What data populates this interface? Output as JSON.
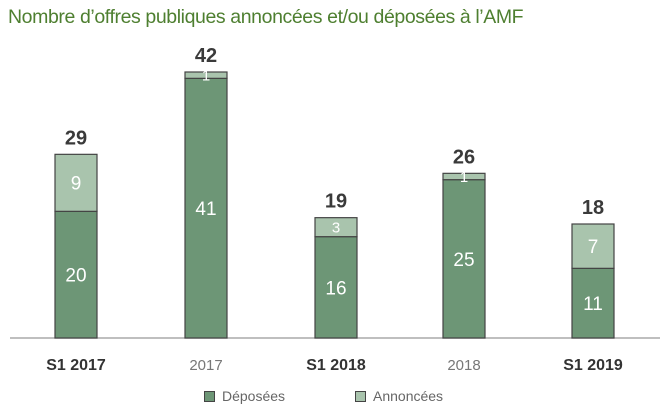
{
  "colors": {
    "title": "#4e7f30",
    "deposees": "#6d9676",
    "annoncees": "#a9c4ad",
    "bar_border": "#444444",
    "baseline": "#aaaaaa",
    "total_text": "#3a3a3a",
    "segment_text": "#ffffff",
    "bold_label": "#333333",
    "light_label": "#777777"
  },
  "chart_data": {
    "type": "bar",
    "stacked": true,
    "title": "Nombre d’offres publiques annoncées et/ou déposées à l’AMF",
    "categories": [
      "S1 2017",
      "2017",
      "S1 2018",
      "2018",
      "S1 2019"
    ],
    "category_label_bold": [
      true,
      false,
      true,
      false,
      true
    ],
    "series": [
      {
        "name": "Déposées",
        "values": [
          20,
          41,
          16,
          25,
          11
        ]
      },
      {
        "name": "Annoncées",
        "values": [
          9,
          1,
          3,
          1,
          7
        ]
      }
    ],
    "totals": [
      29,
      42,
      19,
      26,
      18
    ],
    "ylim": [
      0,
      42
    ],
    "legend": "bottom",
    "grid": false
  }
}
